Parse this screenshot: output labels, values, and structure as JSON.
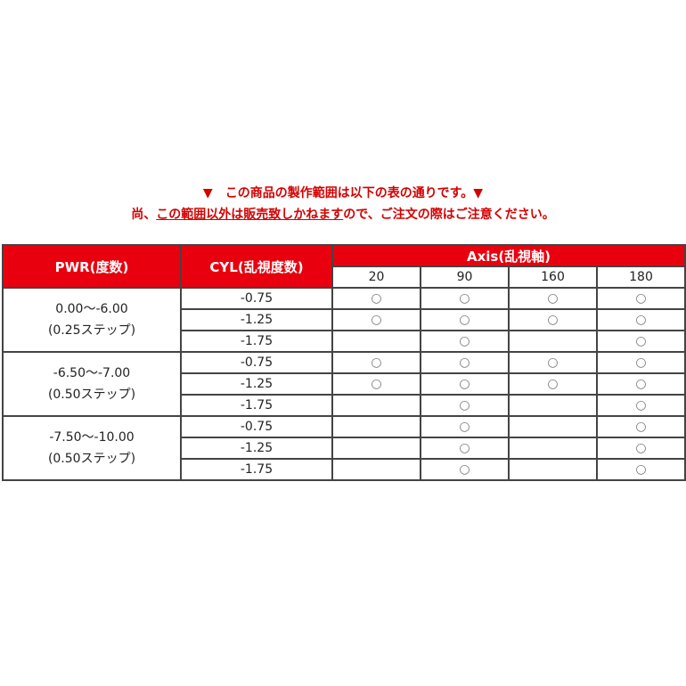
{
  "notice": {
    "line1": "▼　この商品の製作範囲は以下の表の通りです。▼",
    "line2_pre": "尚、",
    "line2_underlined": "この範囲以外は販売致しかねます",
    "line2_post": "ので、ご注文の際はご注意ください。"
  },
  "colors": {
    "header_bg": "#e8000f",
    "notice_text": "#d40000"
  },
  "table": {
    "headers": {
      "pwr": "PWR(度数)",
      "cyl": "CYL(乱視度数)",
      "axis": "Axis(乱視軸)"
    },
    "axis_values": [
      "20",
      "90",
      "160",
      "180"
    ],
    "mark": "○",
    "groups": [
      {
        "pwr": "0.00～-6.00",
        "step": "(0.25ステップ)",
        "rows": [
          {
            "cyl": "-0.75",
            "avail": [
              true,
              true,
              true,
              true
            ]
          },
          {
            "cyl": "-1.25",
            "avail": [
              true,
              true,
              true,
              true
            ]
          },
          {
            "cyl": "-1.75",
            "avail": [
              false,
              true,
              false,
              true
            ]
          }
        ]
      },
      {
        "pwr": "-6.50～-7.00",
        "step": "(0.50ステップ)",
        "rows": [
          {
            "cyl": "-0.75",
            "avail": [
              true,
              true,
              true,
              true
            ]
          },
          {
            "cyl": "-1.25",
            "avail": [
              true,
              true,
              true,
              true
            ]
          },
          {
            "cyl": "-1.75",
            "avail": [
              false,
              true,
              false,
              true
            ]
          }
        ]
      },
      {
        "pwr": "-7.50～-10.00",
        "step": "(0.50ステップ)",
        "rows": [
          {
            "cyl": "-0.75",
            "avail": [
              false,
              true,
              false,
              true
            ]
          },
          {
            "cyl": "-1.25",
            "avail": [
              false,
              true,
              false,
              true
            ]
          },
          {
            "cyl": "-1.75",
            "avail": [
              false,
              true,
              false,
              true
            ]
          }
        ]
      }
    ]
  }
}
